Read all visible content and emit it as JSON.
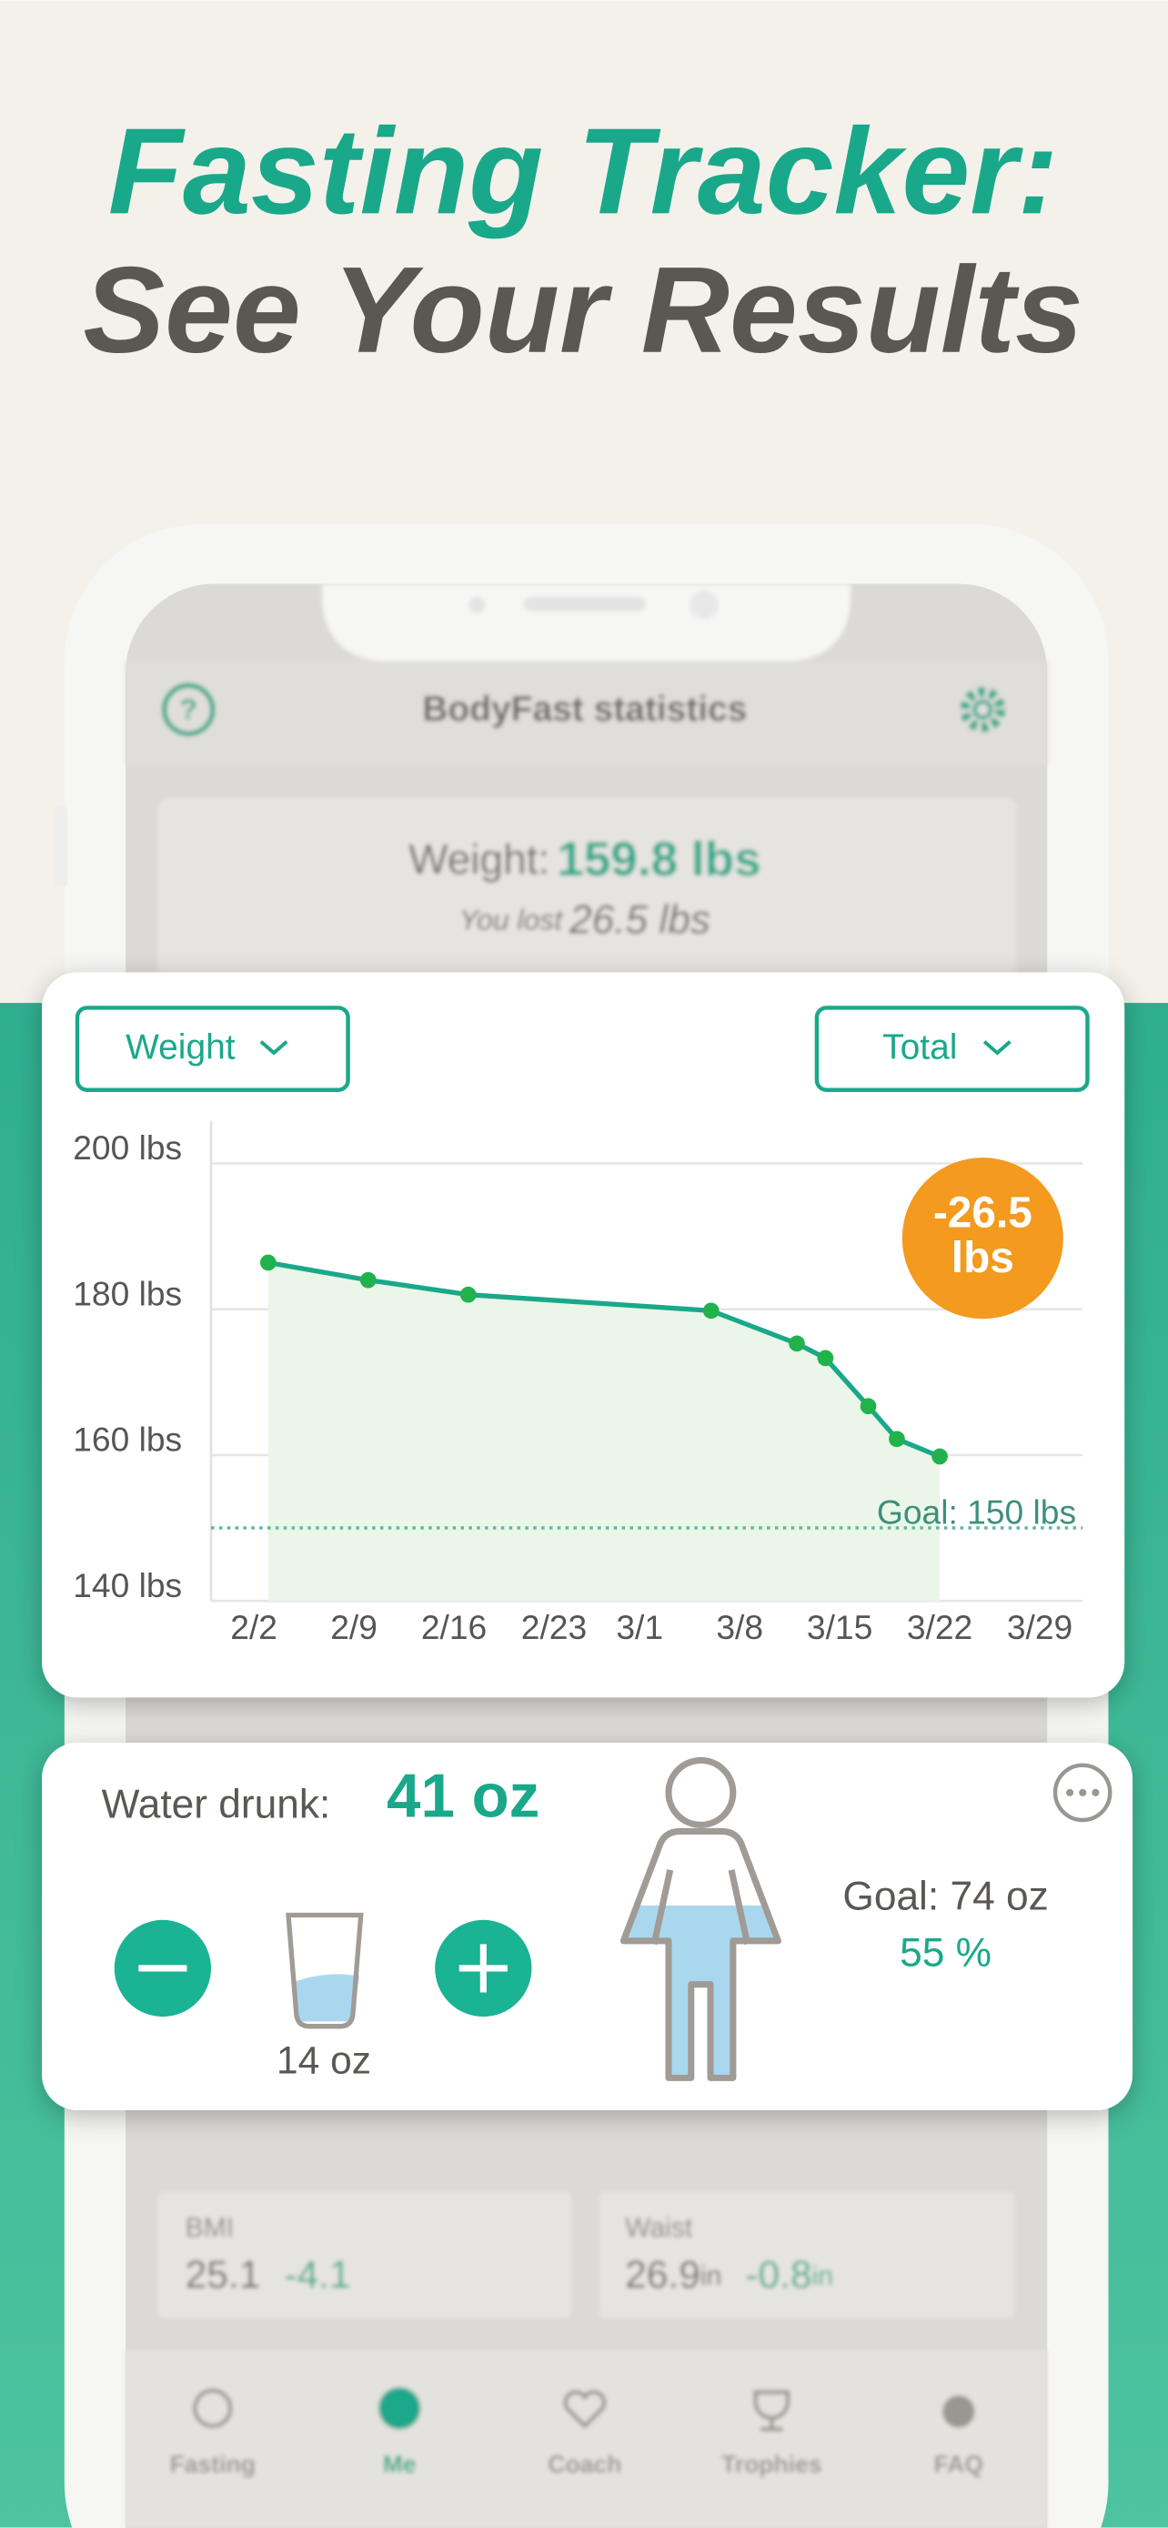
{
  "header": {
    "title_line1": "Fasting Tracker:",
    "title_line2": "See Your Results"
  },
  "phone": {
    "screen_title": "BodyFast statistics",
    "weight_label": "Weight:",
    "weight_value": "159.8 lbs",
    "lost_label": "You lost",
    "lost_value": "26.5 lbs"
  },
  "chart_card": {
    "metric_dropdown": "Weight",
    "range_dropdown": "Total"
  },
  "chart_data": {
    "type": "line",
    "color": "#1aa88a",
    "point_color": "#22b24c",
    "area_color": "#eaf6e8",
    "x": [
      "2/3",
      "2/10",
      "2/17",
      "3/6",
      "3/12",
      "3/14",
      "3/17",
      "3/19",
      "3/22"
    ],
    "values": [
      186.4,
      184,
      182,
      179.8,
      175.3,
      173.3,
      166.7,
      162.2,
      159.8
    ],
    "xlim": [
      "1/30",
      "4/1"
    ],
    "xticks": [
      "2/2",
      "2/9",
      "2/16",
      "2/23",
      "3/1",
      "3/8",
      "3/15",
      "3/22",
      "3/29"
    ],
    "ylim": [
      140,
      205
    ],
    "yticks": [
      {
        "value": 140,
        "label": "140 lbs"
      },
      {
        "value": 160,
        "label": "160 lbs"
      },
      {
        "value": 180,
        "label": "180 lbs"
      },
      {
        "value": 200,
        "label": "200 lbs"
      }
    ],
    "grid": true,
    "goal": {
      "value": 150,
      "label": "Goal: 150 lbs"
    },
    "badge_lines": [
      "-26.5",
      "lbs"
    ]
  },
  "water_card": {
    "label": "Water drunk:",
    "amount": "41 oz",
    "glass_size": "14 oz",
    "goal": "Goal: 74 oz",
    "percent": "55 %"
  },
  "stats": [
    {
      "label": "BMI",
      "value": "25.1",
      "change": "-4.1"
    },
    {
      "label": "Waist",
      "value": "26.9",
      "unit": "in",
      "change": "-0.8",
      "change_unit": "in"
    }
  ],
  "tabs": [
    "Fasting",
    "Me",
    "Coach",
    "Trophies",
    "FAQ"
  ]
}
